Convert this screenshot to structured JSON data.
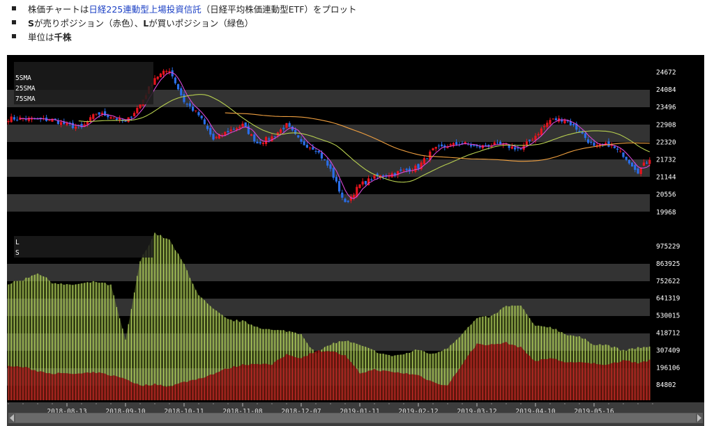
{
  "notes": {
    "line1_prefix": "株価チャートは",
    "line1_link": "日経225連動型上場投資信託",
    "line1_suffix": "（日経平均株価連動型ETF）をプロット",
    "line2_s": "S",
    "line2_mid": "が売りポジション（赤色）、",
    "line2_l": "L",
    "line2_end": "が買いポジション（緑色）",
    "line3_prefix": "単位は",
    "line3_bold": "千株"
  },
  "colors": {
    "up": "#e8141e",
    "down": "#2a6ee8",
    "sma5": "#d848d8",
    "sma25": "#b8d050",
    "sma75": "#f0a040",
    "long": "#b8d860",
    "short": "#c82828",
    "band": "#333333",
    "bg": "#000000",
    "link": "#1a3fc4"
  },
  "chart_data": [
    {
      "type": "candlestick",
      "legend": [
        "5SMA",
        "25SMA",
        "75SMA"
      ],
      "legend_placement": "top-left",
      "y_ticks": [
        24672,
        24084,
        23496,
        22908,
        22320,
        21732,
        21144,
        20556,
        19968
      ],
      "ylim": [
        19968,
        24672
      ],
      "close_every_5_days": [
        23120,
        23120,
        23080,
        23080,
        22900,
        22800,
        23300,
        23200,
        22980,
        23590,
        24500,
        24766,
        23700,
        23237,
        22414,
        22700,
        22900,
        22300,
        22500,
        22900,
        22300,
        22100,
        21400,
        20250,
        20885,
        21150,
        21250,
        21356,
        21500,
        22061,
        22200,
        22296,
        22150,
        22250,
        22200,
        22100,
        22550,
        23073,
        23100,
        22700,
        22150,
        22250,
        21900,
        21350,
        21900
      ]
    },
    {
      "type": "bar",
      "legend": [
        "L",
        "S"
      ],
      "legend_placement": "top-left",
      "y_ticks": [
        975229,
        863925,
        752622,
        641319,
        530015,
        418712,
        307409,
        196106,
        84802
      ],
      "long_every_5_days": [
        735000,
        761000,
        806000,
        744000,
        726000,
        735000,
        748000,
        726000,
        370000,
        882000,
        1060000,
        1015000,
        860000,
        659000,
        570000,
        503000,
        494000,
        459000,
        436000,
        432000,
        414000,
        281000,
        348000,
        370000,
        339000,
        303000,
        272000,
        281000,
        312000,
        281000,
        325000,
        414000,
        512000,
        525000,
        592000,
        592000,
        459000,
        459000,
        414000,
        392000,
        348000,
        339000,
        303000,
        325000,
        325000
      ],
      "short_every_5_days": [
        205000,
        200000,
        174000,
        160000,
        156000,
        156000,
        165000,
        147000,
        125000,
        80000,
        89000,
        76000,
        103000,
        125000,
        156000,
        192000,
        214000,
        223000,
        214000,
        281000,
        258000,
        303000,
        303000,
        272000,
        160000,
        183000,
        169000,
        160000,
        147000,
        103000,
        80000,
        219000,
        348000,
        343000,
        356000,
        325000,
        236000,
        258000,
        232000,
        227000,
        223000,
        214000,
        245000,
        227000,
        245000
      ]
    }
  ],
  "x_axis": {
    "labels": [
      "2018-08-13",
      "2018-09-10",
      "2018-10-11",
      "2018-11-08",
      "2018-12-07",
      "2019-01-11",
      "2019-02-12",
      "2019-03-12",
      "2019-04-10",
      "2019-05-16"
    ]
  },
  "scrollbar": {
    "left_icon": "arrow-left-icon",
    "right_icon": "arrow-right-icon",
    "position": 0,
    "visible_fraction": 1.0
  }
}
